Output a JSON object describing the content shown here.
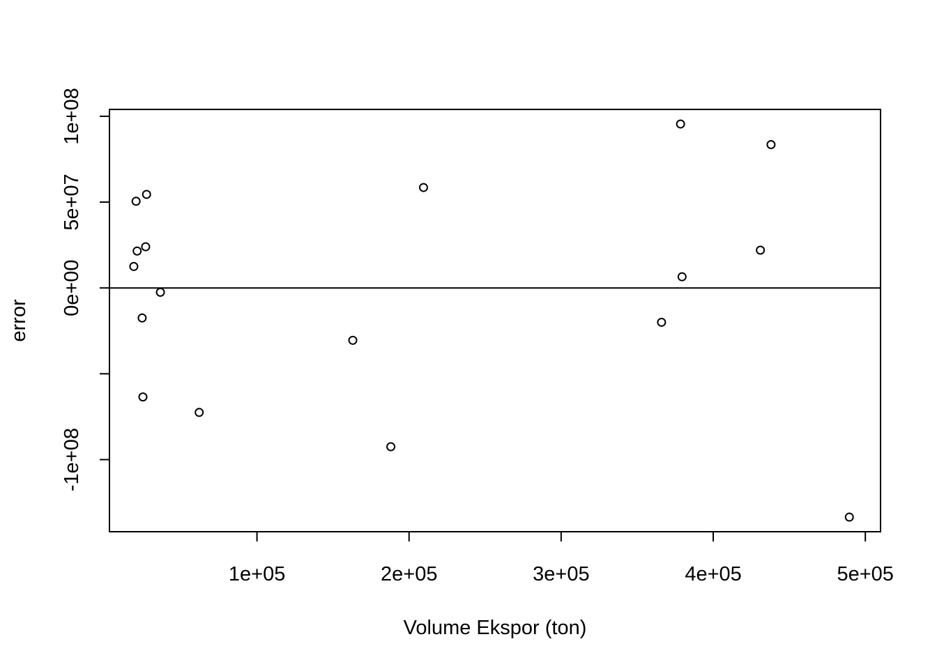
{
  "chart_data": {
    "type": "scatter",
    "xlabel": "Volume Ekspor (ton)",
    "ylabel": "error",
    "x_ticks": [
      {
        "value": 100000,
        "label": "1e+05"
      },
      {
        "value": 200000,
        "label": "2e+05"
      },
      {
        "value": 300000,
        "label": "3e+05"
      },
      {
        "value": 400000,
        "label": "4e+05"
      },
      {
        "value": 500000,
        "label": "5e+05"
      }
    ],
    "y_ticks": [
      {
        "value": -100000000,
        "label": "-1e+08"
      },
      {
        "value": -50000000,
        "label": ""
      },
      {
        "value": 0,
        "label": "0e+00"
      },
      {
        "value": 50000000,
        "label": "5e+07"
      },
      {
        "value": 100000000,
        "label": "1e+08"
      }
    ],
    "xlim": [
      3000,
      510000
    ],
    "ylim": [
      -142000000,
      104000000
    ],
    "reference_line_y": 0,
    "marker": "open-circle",
    "points": [
      {
        "x": 19000,
        "y": 12500000
      },
      {
        "x": 20500,
        "y": 50500000
      },
      {
        "x": 21200,
        "y": 21500000
      },
      {
        "x": 24500,
        "y": -17500000
      },
      {
        "x": 25000,
        "y": -63500000
      },
      {
        "x": 26800,
        "y": 24000000
      },
      {
        "x": 27400,
        "y": 54500000
      },
      {
        "x": 36500,
        "y": -2500000
      },
      {
        "x": 62000,
        "y": -72500000
      },
      {
        "x": 163000,
        "y": -30500000
      },
      {
        "x": 188000,
        "y": -92500000
      },
      {
        "x": 209500,
        "y": 58500000
      },
      {
        "x": 366000,
        "y": -20000000
      },
      {
        "x": 378500,
        "y": 95500000
      },
      {
        "x": 379500,
        "y": 6500000
      },
      {
        "x": 431000,
        "y": 22000000
      },
      {
        "x": 438000,
        "y": 83500000
      },
      {
        "x": 489500,
        "y": -133500000
      }
    ]
  }
}
